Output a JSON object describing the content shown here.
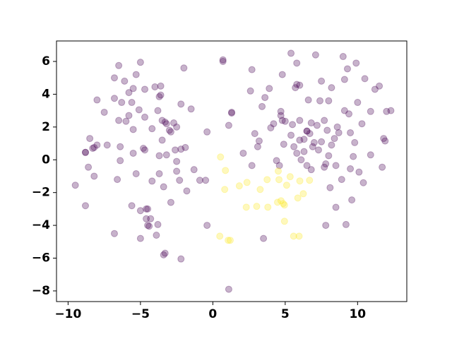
{
  "chart_data": {
    "type": "scatter",
    "xlim": [
      -10.8,
      13.4
    ],
    "ylim": [
      -8.65,
      7.25
    ],
    "xticks": [
      {
        "value": -10,
        "label": "−10"
      },
      {
        "value": -5,
        "label": "−5"
      },
      0,
      5,
      10
    ],
    "yticks": [
      {
        "value": -8,
        "label": "−8"
      },
      {
        "value": -6,
        "label": "−6"
      },
      {
        "value": -4,
        "label": "−4"
      },
      {
        "value": -2,
        "label": "−2"
      },
      0,
      2,
      4,
      6
    ],
    "alpha": 0.3,
    "series": [
      {
        "color": "#440154",
        "x": [
          -9.5,
          -8.8,
          -8.8,
          -8.8,
          -8.5,
          -8.3,
          -8.2,
          -8,
          -8,
          -8.6,
          -8.2,
          -7.5,
          -7.3,
          -6.8,
          -6.8,
          -6.8,
          -6.6,
          -6.5,
          -6.4,
          -6.4,
          -6.5,
          -6.3,
          -6.1,
          -6,
          -5.8,
          -5.8,
          -5.6,
          -5.6,
          -5.5,
          -5.5,
          -5.5,
          -5.3,
          -5.3,
          -5.1,
          -5,
          -5,
          -5,
          -4.8,
          -4.7,
          -4.7,
          -4.7,
          -4.6,
          -4.6,
          -4.5,
          -4.4,
          -4.5,
          -4.3,
          -4.2,
          -4.2,
          -4,
          -3.8,
          -3.9,
          -3.8,
          -3.7,
          -3.6,
          -3.5,
          -3.5,
          -3.7,
          -3.7,
          -3.6,
          -3.4,
          -3.3,
          -3.4,
          -3.3,
          -3.2,
          -3.2,
          -3,
          -2.9,
          -2.9,
          -2.7,
          -2.6,
          -2.5,
          -2.5,
          -2.5,
          -2.2,
          -2.3,
          -2.2,
          -2.2,
          -2,
          -1.9,
          -1.8,
          -1.5,
          -1.3,
          -0.9,
          -0.5,
          -0.4,
          -0.4,
          0.7,
          0.7,
          1.1,
          1.3,
          1.3,
          1.1,
          2.1,
          2.6,
          2.7,
          2.7,
          2.9,
          3.1,
          3.2,
          3.4,
          3.5,
          3.6,
          3.9,
          4,
          4.2,
          4.4,
          4.6,
          4.7,
          4.7,
          4.8,
          4.8,
          4.9,
          5,
          5.4,
          5.4,
          5.5,
          5.6,
          5.8,
          5.7,
          5.8,
          5.8,
          6,
          6,
          6,
          6.1,
          6.3,
          6.3,
          6.5,
          6.5,
          6.5,
          6.6,
          6.7,
          6.8,
          6.8,
          6.9,
          7,
          7.1,
          7.2,
          7.3,
          7.4,
          7.5,
          7.5,
          7.7,
          7.7,
          7.8,
          7.8,
          7.9,
          8,
          8,
          8.1,
          8.2,
          8.2,
          8.4,
          8.5,
          8.5,
          8.6,
          8.7,
          8.9,
          9,
          9.1,
          9.1,
          9.2,
          9.3,
          9.4,
          9.5,
          9.5,
          9.6,
          9.7,
          9.8,
          9.9,
          10,
          10.1,
          10.3,
          10.4,
          10.5,
          10.9,
          10.9,
          11.2,
          11.5,
          11.7,
          11.8,
          11.9,
          12,
          12.3
        ],
        "values": [
          -1.55,
          -2.8,
          0.45,
          0.45,
          1.3,
          0.7,
          0.75,
          0.9,
          3.65,
          -0.45,
          -1,
          2.9,
          0.9,
          3.75,
          5,
          -4.5,
          -1.2,
          2.4,
          -0.05,
          0.8,
          5.75,
          3.5,
          4.8,
          2.35,
          4.1,
          2.7,
          3.5,
          -2.8,
          4.35,
          1.85,
          0.4,
          -0.85,
          5.2,
          3.05,
          5.95,
          -4.8,
          -3.1,
          0.7,
          0.6,
          2.6,
          4.3,
          -3,
          -3.6,
          -3,
          -4.05,
          -4,
          -3.6,
          -1.3,
          1.9,
          4.45,
          3,
          -4.6,
          -3.95,
          3.85,
          3.95,
          2.4,
          1.2,
          0.25,
          -0.85,
          4.5,
          -1.65,
          -5.7,
          -5.8,
          2.3,
          2.2,
          0.3,
          1.8,
          -2.6,
          1.7,
          2.25,
          0.6,
          -0.7,
          -0.1,
          2,
          -6.05,
          -1.25,
          3.4,
          0.65,
          5.6,
          0.75,
          -1.9,
          3.1,
          -0.6,
          -1.25,
          -1.25,
          1.7,
          -4,
          6.1,
          6,
          2.1,
          2.9,
          2.85,
          -7.9,
          0.4,
          4.2,
          5.5,
          -0.35,
          1.6,
          0.8,
          1.15,
          3.25,
          -4.8,
          3.8,
          4.35,
          1.95,
          2.2,
          -0.05,
          -0.35,
          2.7,
          2.95,
          2.4,
          5.2,
          0.95,
          2.35,
          1.5,
          6.5,
          2.15,
          0.8,
          0.4,
          4.4,
          5.9,
          4.6,
          4.55,
          1.2,
          2.4,
          0,
          1.25,
          0.5,
          -0.35,
          1.75,
          1.75,
          3.65,
          1.6,
          2.25,
          -0.6,
          0.8,
          1.05,
          6.4,
          2.1,
          0.6,
          3.6,
          4.8,
          1.1,
          -0.45,
          2.4,
          -4,
          -0.25,
          1.8,
          3.6,
          0.25,
          -1.7,
          4.4,
          0.9,
          1.3,
          -0.35,
          -2.9,
          2,
          1.65,
          -1.2,
          6.3,
          4.9,
          3,
          -3.95,
          5.55,
          2.8,
          1.65,
          -0.55,
          -2.45,
          0.2,
          1.05,
          5.9,
          3.5,
          -0.75,
          2.2,
          -1.4,
          4.95,
          2.95,
          0.3,
          4.3,
          4.5,
          -0.45,
          1.3,
          1.15,
          2.95,
          3
        ]
      },
      {
        "color": "#fde725",
        "x": [
          0.53,
          0.87,
          0.82,
          0.48,
          1.06,
          1.2,
          1.83,
          2.36,
          2.31,
          3.03,
          3.27,
          3.75,
          3.8,
          4.47,
          4.52,
          4.57,
          4.71,
          4.86,
          4.95,
          5.1,
          5.34,
          5.58,
          5.96,
          5.87,
          6.01,
          6.25,
          6.68,
          4.95
        ],
        "values": [
          0.17,
          -0.65,
          -1.81,
          -4.66,
          -4.91,
          -4.91,
          -1.59,
          -1.38,
          -2.89,
          -2.84,
          -1.81,
          -1.21,
          -2.89,
          -2.59,
          -0.69,
          -1.21,
          -2.5,
          -2.67,
          -3.75,
          -1.55,
          -1.03,
          -4.66,
          -4.66,
          -2.33,
          -1.29,
          -2.07,
          -1.25,
          -2.76
        ]
      }
    ]
  }
}
